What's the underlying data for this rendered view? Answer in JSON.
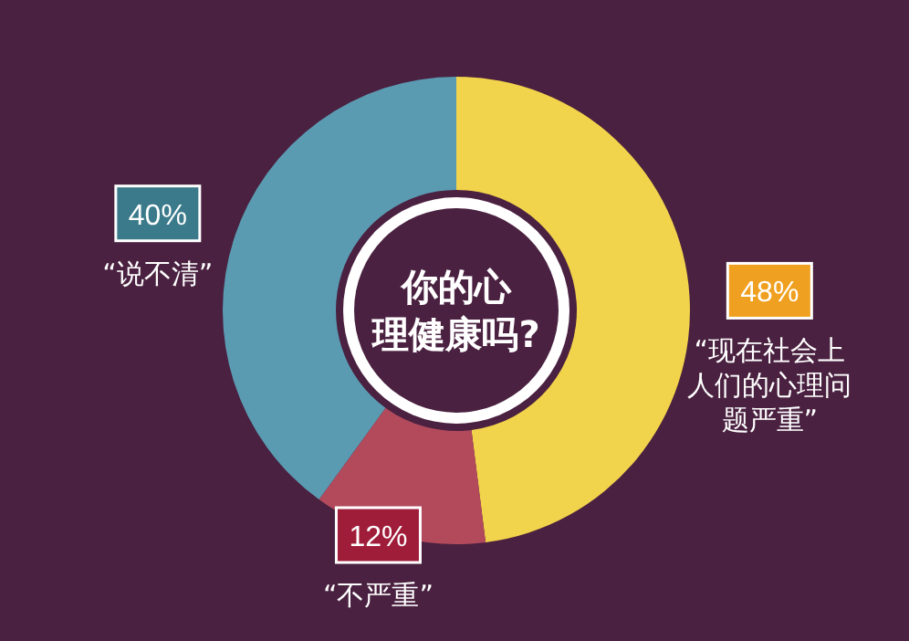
{
  "chart_data": {
    "type": "donut",
    "title": "你的心理健康吗?",
    "categories": [
      "“现在社会上人们的心理问题严重”",
      "“不严重”",
      "“说不清”"
    ],
    "values": [
      48,
      12,
      40
    ],
    "colors": [
      "#f2d34c",
      "#b24a5c",
      "#5b9bb2"
    ],
    "value_labels": [
      "48%",
      "12%",
      "40%"
    ]
  }
}
